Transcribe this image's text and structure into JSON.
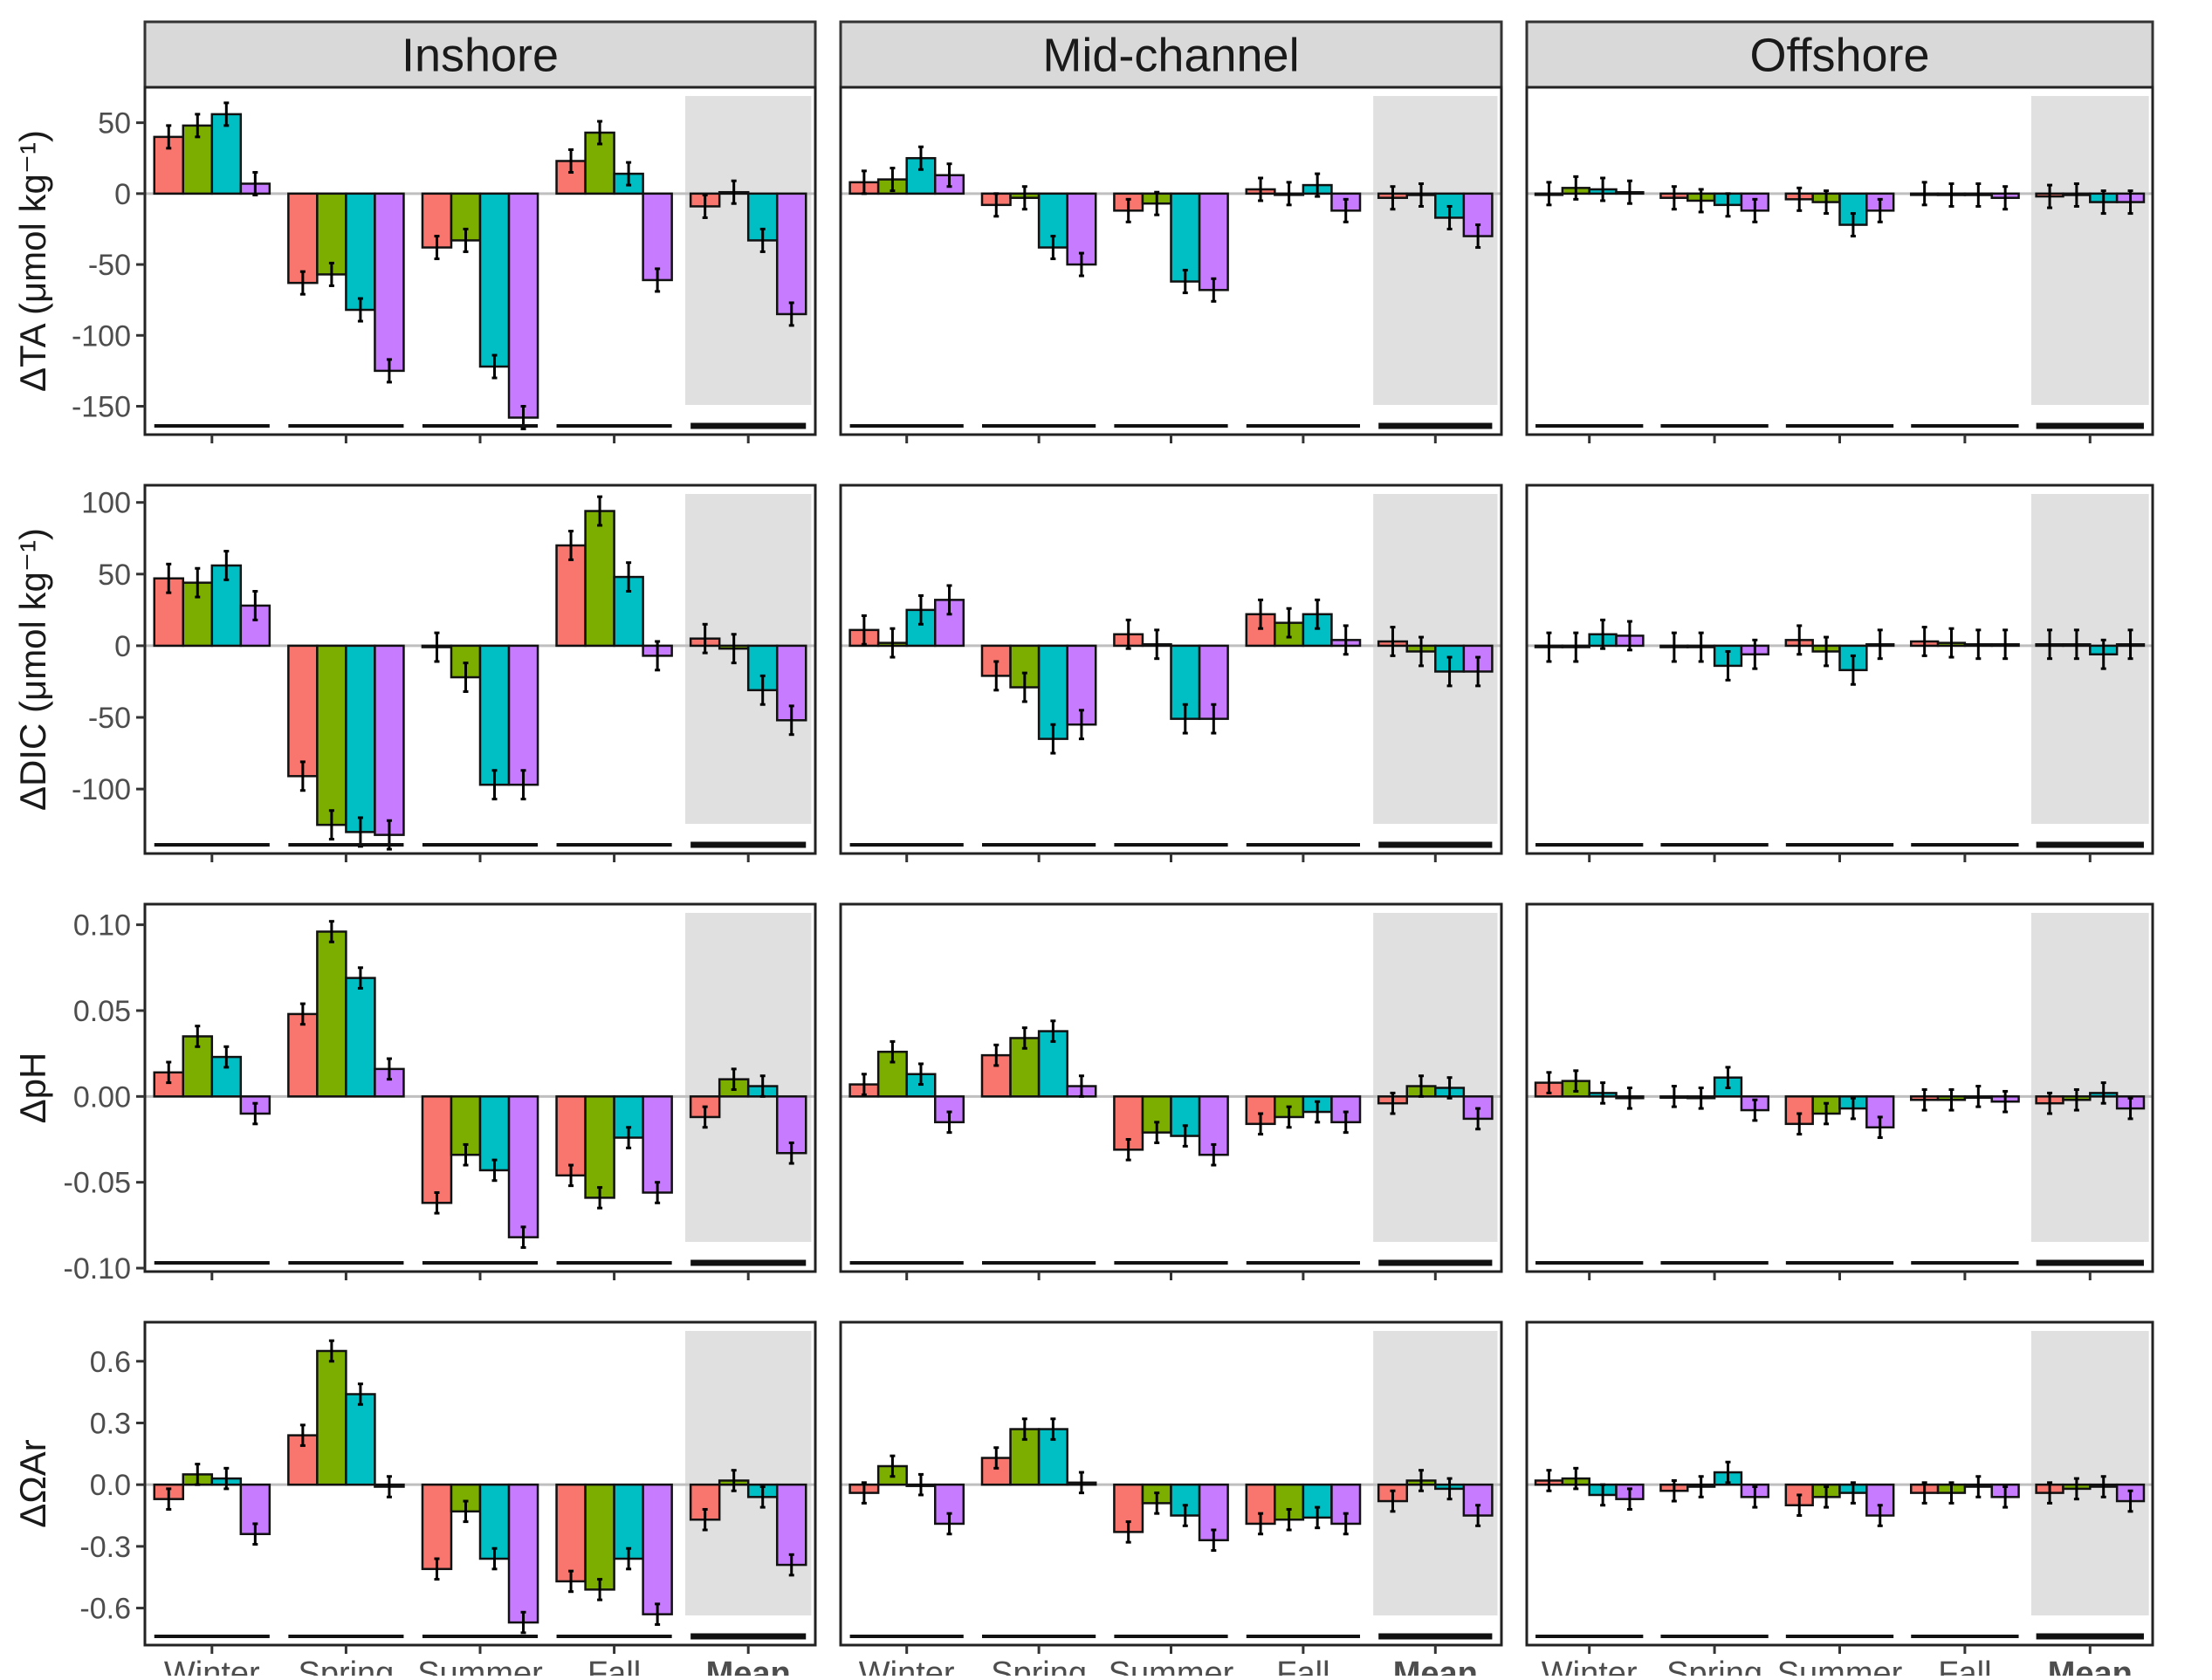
{
  "chart_data": {
    "type": "bar",
    "facets": {
      "columns": [
        "Inshore",
        "Mid-channel",
        "Offshore"
      ],
      "rows": [
        {
          "key": "ta",
          "ylabel": "ΔTA (μmol kg⁻¹)",
          "ylim": [
            -170,
            75
          ],
          "ticks": [
            50,
            0,
            -50,
            -100,
            -150
          ],
          "tick_labels": [
            "50",
            "0",
            "-50",
            "-100",
            "-150"
          ]
        },
        {
          "key": "dic",
          "ylabel": "ΔDIC (μmol kg⁻¹)",
          "ylim": [
            -145,
            112
          ],
          "ticks": [
            100,
            50,
            0,
            -50,
            -100
          ],
          "tick_labels": [
            "100",
            "50",
            "0",
            "-50",
            "-100"
          ]
        },
        {
          "key": "ph",
          "ylabel": "ΔpH",
          "ylim": [
            -0.102,
            0.112
          ],
          "ticks": [
            0.1,
            0.05,
            0.0,
            -0.05,
            -0.1
          ],
          "tick_labels": [
            "0.10",
            "0.05",
            "0.00",
            "-0.05",
            "-0.10"
          ]
        },
        {
          "key": "omega",
          "ylabel": "ΔΩAr",
          "ylim": [
            -0.78,
            0.79
          ],
          "ticks": [
            0.6,
            0.3,
            0.0,
            -0.3,
            -0.6
          ],
          "tick_labels": [
            "0.6",
            "0.3",
            "0.0",
            "-0.3",
            "-0.6"
          ]
        }
      ]
    },
    "categories": [
      "Winter",
      "Spring",
      "Summer",
      "Fall",
      "Mean"
    ],
    "highlighted_category": "Mean",
    "series_colors": [
      "#F8766D",
      "#7CAE00",
      "#00BFC4",
      "#C77CFF"
    ],
    "values": {
      "ta": {
        "Inshore": [
          [
            40,
            48,
            56,
            7
          ],
          [
            -63,
            -57,
            -82,
            -125
          ],
          [
            -38,
            -33,
            -122,
            -158
          ],
          [
            23,
            43,
            14,
            -61
          ],
          [
            -9,
            1,
            -33,
            -85
          ]
        ],
        "Mid-channel": [
          [
            8,
            10,
            25,
            13
          ],
          [
            -8,
            -3,
            -38,
            -50
          ],
          [
            -12,
            -7,
            -62,
            -68
          ],
          [
            3,
            0,
            6,
            -12
          ],
          [
            -3,
            -1,
            -17,
            -30
          ]
        ],
        "Offshore": [
          [
            0,
            4,
            3,
            1
          ],
          [
            -3,
            -5,
            -8,
            -12
          ],
          [
            -4,
            -6,
            -22,
            -12
          ],
          [
            0,
            -1,
            -1,
            -3
          ],
          [
            -2,
            -1,
            -6,
            -6
          ]
        ]
      },
      "dic": {
        "Inshore": [
          [
            47,
            44,
            56,
            28
          ],
          [
            -91,
            -125,
            -130,
            -132
          ],
          [
            -1,
            -22,
            -97,
            -97
          ],
          [
            70,
            94,
            48,
            -7
          ],
          [
            5,
            -2,
            -31,
            -52
          ]
        ],
        "Mid-channel": [
          [
            11,
            2,
            25,
            32
          ],
          [
            -21,
            -29,
            -65,
            -55
          ],
          [
            8,
            1,
            -51,
            -51
          ],
          [
            22,
            16,
            22,
            4
          ],
          [
            3,
            -4,
            -18,
            -18
          ]
        ],
        "Offshore": [
          [
            -1,
            -1,
            8,
            7
          ],
          [
            -1,
            -1,
            -14,
            -6
          ],
          [
            4,
            -4,
            -17,
            1
          ],
          [
            3,
            2,
            1,
            1
          ],
          [
            1,
            1,
            -6,
            1
          ]
        ]
      },
      "ph": {
        "Inshore": [
          [
            0.014,
            0.035,
            0.023,
            -0.01
          ],
          [
            0.048,
            0.096,
            0.069,
            0.016
          ],
          [
            -0.062,
            -0.034,
            -0.043,
            -0.082
          ],
          [
            -0.046,
            -0.059,
            -0.024,
            -0.056
          ],
          [
            -0.012,
            0.01,
            0.006,
            -0.033
          ]
        ],
        "Mid-channel": [
          [
            0.007,
            0.026,
            0.013,
            -0.015
          ],
          [
            0.024,
            0.034,
            0.038,
            0.006
          ],
          [
            -0.031,
            -0.021,
            -0.023,
            -0.034
          ],
          [
            -0.016,
            -0.012,
            -0.009,
            -0.015
          ],
          [
            -0.004,
            0.006,
            0.005,
            -0.013
          ]
        ],
        "Offshore": [
          [
            0.008,
            0.009,
            0.002,
            -0.001
          ],
          [
            0.0,
            -0.001,
            0.011,
            -0.008
          ],
          [
            -0.016,
            -0.01,
            -0.007,
            -0.018
          ],
          [
            -0.002,
            -0.002,
            0.0,
            -0.003
          ],
          [
            -0.004,
            -0.002,
            0.002,
            -0.007
          ]
        ]
      },
      "omega": {
        "Inshore": [
          [
            -0.07,
            0.05,
            0.03,
            -0.24
          ],
          [
            0.24,
            0.65,
            0.44,
            -0.01
          ],
          [
            -0.41,
            -0.13,
            -0.36,
            -0.67
          ],
          [
            -0.47,
            -0.51,
            -0.36,
            -0.63
          ],
          [
            -0.17,
            0.02,
            -0.06,
            -0.39
          ]
        ],
        "Mid-channel": [
          [
            -0.04,
            0.09,
            0.0,
            -0.19
          ],
          [
            0.13,
            0.27,
            0.27,
            0.01
          ],
          [
            -0.23,
            -0.09,
            -0.15,
            -0.27
          ],
          [
            -0.19,
            -0.17,
            -0.16,
            -0.19
          ],
          [
            -0.08,
            0.02,
            -0.02,
            -0.15
          ]
        ],
        "Offshore": [
          [
            0.02,
            0.03,
            -0.05,
            -0.07
          ],
          [
            -0.03,
            -0.01,
            0.06,
            -0.06
          ],
          [
            -0.1,
            -0.06,
            -0.04,
            -0.15
          ],
          [
            -0.04,
            -0.04,
            -0.01,
            -0.06
          ],
          [
            -0.04,
            -0.02,
            -0.01,
            -0.08
          ]
        ]
      }
    },
    "error_bars": {
      "ta": 8,
      "dic": 10,
      "ph": 0.006,
      "omega": 0.05
    },
    "zero_line": true,
    "grid": false,
    "legend": "none"
  }
}
